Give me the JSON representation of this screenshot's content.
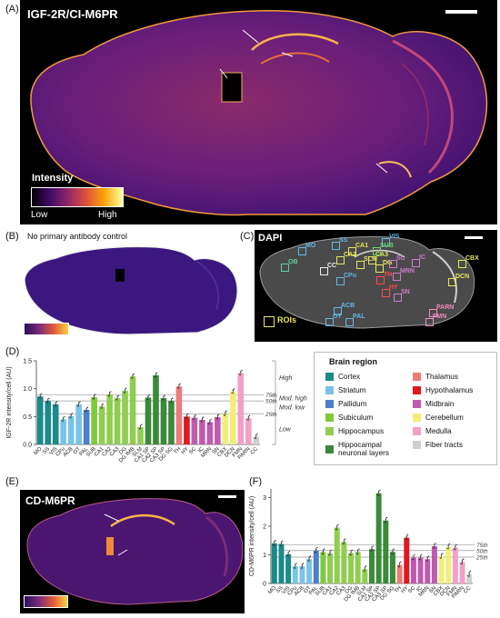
{
  "panels": {
    "a": {
      "letter": "(A)",
      "title": "IGF-2R/CI-M6PR",
      "colorbar": {
        "title": "Intensity",
        "low": "Low",
        "high": "High"
      }
    },
    "b": {
      "letter": "(B)",
      "title": "No primary antibody control"
    },
    "c": {
      "letter": "(C)",
      "title": "DAPI",
      "roi_label": "ROIs",
      "rois": [
        {
          "label": "OB",
          "color": "#5fd1a0"
        },
        {
          "label": "MO",
          "color": "#63b8e8"
        },
        {
          "label": "SS",
          "color": "#63b8e8"
        },
        {
          "label": "VIS",
          "color": "#63b8e8"
        },
        {
          "label": "CA1",
          "color": "#e8e85a"
        },
        {
          "label": "CA2",
          "color": "#e8e85a"
        },
        {
          "label": "CA3",
          "color": "#e8e85a"
        },
        {
          "label": "SUB",
          "color": "#6ed36e"
        },
        {
          "label": "SLM",
          "color": "#e8e85a"
        },
        {
          "label": "DG",
          "color": "#e8e85a"
        },
        {
          "label": "CC",
          "color": "#f0f0f0"
        },
        {
          "label": "CPu",
          "color": "#63b8e8"
        },
        {
          "label": "TH",
          "color": "#ff4d4d"
        },
        {
          "label": "SC",
          "color": "#d07ad0"
        },
        {
          "label": "IC",
          "color": "#d07ad0"
        },
        {
          "label": "CBX",
          "color": "#e8e85a"
        },
        {
          "label": "MRN",
          "color": "#d07ad0"
        },
        {
          "label": "DCN",
          "color": "#e8e85a"
        },
        {
          "label": "HY",
          "color": "#ff4d4d"
        },
        {
          "label": "SN",
          "color": "#d07ad0"
        },
        {
          "label": "ACB",
          "color": "#63b8e8"
        },
        {
          "label": "OT",
          "color": "#63b8e8"
        },
        {
          "label": "PAL",
          "color": "#63b8e8"
        },
        {
          "label": "PARN",
          "color": "#f08cc0"
        },
        {
          "label": "FMN",
          "color": "#f08cc0"
        }
      ]
    },
    "d": {
      "letter": "(D)"
    },
    "e": {
      "letter": "(E)",
      "title": "CD-M6PR"
    },
    "f": {
      "letter": "(F)"
    }
  },
  "colors": {
    "Cortex": "#1a8a8a",
    "Striatum": "#79c3e6",
    "Pallidum": "#4b7fc9",
    "Subiculum": "#7ecb3a",
    "Hippocampus": "#8fce4e",
    "Hippocampal neuronal layers": "#3a8a3a",
    "Thalamus": "#ef7b7b",
    "Hypothalamus": "#e0181e",
    "Midbrain": "#c05ab0",
    "Cerebellum": "#f2ee7a",
    "Medulla": "#f2a0c8",
    "Fiber tracts": "#cfcfcf"
  },
  "legend": {
    "title": "Brain region",
    "items": [
      "Cortex",
      "Striatum",
      "Pallidum",
      "Subiculum",
      "Hippocampus",
      "Hippocampal neuronal layers",
      "Thalamus",
      "Hypothalamus",
      "Midbrain",
      "Cerebellum",
      "Medulla",
      "Fiber tracts"
    ],
    "labels": [
      "Cortex",
      "Striatum",
      "Pallidum",
      "Subiculum",
      "Hippocampus",
      "Hippocampal\nneuronal layers",
      "Thalamus",
      "Hypothalamus",
      "Midbrain",
      "Cerebellum",
      "Medulla",
      "Fiber tracts"
    ]
  },
  "chart_data": [
    {
      "type": "bar",
      "ylabel": "IGF-2R intensity/cell (AU)",
      "ylim": [
        0,
        1.5
      ],
      "yticks": [
        0.0,
        0.5,
        1.0,
        1.5
      ],
      "percentile_lines": [
        {
          "label": "75th",
          "value": 0.89
        },
        {
          "label": "50th",
          "value": 0.78
        },
        {
          "label": "25th",
          "value": 0.55
        }
      ],
      "levels": [
        "High",
        "Mod. high",
        "Mod. low",
        "Low"
      ],
      "categories": [
        "MO",
        "SS",
        "VIS",
        "CPu",
        "ACB",
        "OT",
        "PAL",
        "SUB",
        "CA1",
        "CA2",
        "CA3",
        "DG",
        "DG IMB",
        "SLM",
        "CA1 SP",
        "CA2 SP",
        "CA3 SP",
        "DG SG",
        "TH",
        "HY",
        "SC",
        "IC",
        "MRN",
        "SN",
        "CBX",
        "DCN",
        "FMN",
        "PARN",
        "CC"
      ],
      "regions": [
        "Cortex",
        "Cortex",
        "Cortex",
        "Striatum",
        "Striatum",
        "Striatum",
        "Pallidum",
        "Subiculum",
        "Hippocampus",
        "Hippocampus",
        "Hippocampus",
        "Hippocampus",
        "Hippocampus",
        "Hippocampus",
        "Hippocampal neuronal layers",
        "Hippocampal neuronal layers",
        "Hippocampal neuronal layers",
        "Hippocampal neuronal layers",
        "Thalamus",
        "Hypothalamus",
        "Midbrain",
        "Midbrain",
        "Midbrain",
        "Midbrain",
        "Cerebellum",
        "Cerebellum",
        "Medulla",
        "Medulla",
        "Fiber tracts"
      ],
      "values": [
        0.86,
        0.78,
        0.72,
        0.45,
        0.51,
        0.72,
        0.62,
        0.85,
        0.68,
        0.9,
        0.83,
        0.96,
        1.22,
        0.31,
        0.84,
        1.24,
        0.83,
        0.78,
        1.04,
        0.5,
        0.48,
        0.44,
        0.4,
        0.49,
        0.55,
        0.95,
        1.28,
        0.47,
        0.14
      ]
    },
    {
      "type": "bar",
      "ylabel": "CD-M6PR intensity/cell (AU)",
      "ylim": [
        0,
        3.3
      ],
      "yticks": [
        0,
        1,
        2,
        3
      ],
      "percentile_lines": [
        {
          "label": "75th",
          "value": 1.35
        },
        {
          "label": "50th",
          "value": 1.15
        },
        {
          "label": "25th",
          "value": 0.92
        }
      ],
      "categories": [
        "MO",
        "SS",
        "VIS",
        "CPu",
        "ACB",
        "OT",
        "PAL",
        "SUB",
        "CA1",
        "CA2",
        "CA3",
        "DG",
        "DG IMB",
        "SLM",
        "CA1 SP",
        "CA2 SP",
        "CA3 SP",
        "DG SG",
        "TH",
        "HY",
        "SC",
        "IC",
        "MRN",
        "SN",
        "CBX",
        "DCN",
        "FMN",
        "PARN",
        "CC"
      ],
      "regions": [
        "Cortex",
        "Cortex",
        "Cortex",
        "Striatum",
        "Striatum",
        "Striatum",
        "Pallidum",
        "Subiculum",
        "Hippocampus",
        "Hippocampus",
        "Hippocampus",
        "Hippocampus",
        "Hippocampus",
        "Hippocampus",
        "Hippocampal neuronal layers",
        "Hippocampal neuronal layers",
        "Hippocampal neuronal layers",
        "Hippocampal neuronal layers",
        "Thalamus",
        "Hypothalamus",
        "Midbrain",
        "Midbrain",
        "Midbrain",
        "Midbrain",
        "Cerebellum",
        "Cerebellum",
        "Medulla",
        "Medulla",
        "Fiber tracts"
      ],
      "values": [
        1.4,
        1.38,
        1.02,
        0.6,
        0.6,
        0.85,
        1.15,
        1.1,
        1.06,
        1.95,
        1.45,
        1.06,
        1.1,
        0.5,
        1.2,
        3.15,
        2.2,
        1.1,
        0.65,
        1.6,
        0.9,
        0.9,
        0.85,
        1.3,
        0.95,
        1.28,
        1.25,
        0.75,
        0.32
      ]
    }
  ]
}
